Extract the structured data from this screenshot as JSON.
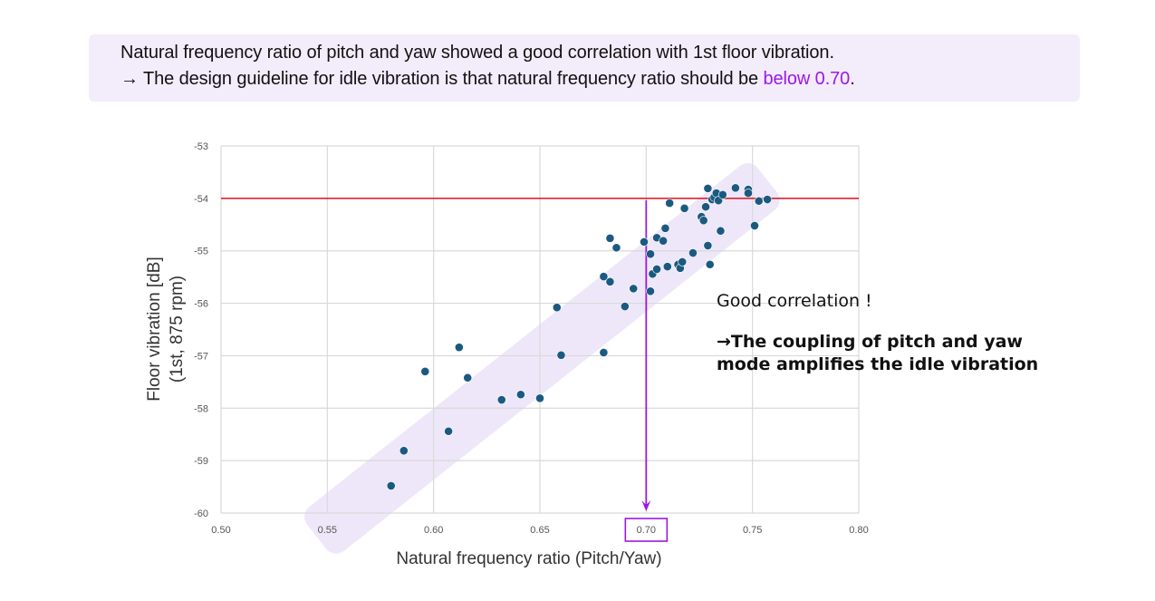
{
  "banner": {
    "line1": "Natural frequency ratio of pitch and yaw showed a good correlation with 1st floor vibration.",
    "line2_prefix": "→ The design guideline for idle vibration is that natural frequency ratio should be ",
    "line2_highlight": "below 0.70",
    "line2_suffix": ".",
    "highlight_color": "#9b18e6"
  },
  "annotation": {
    "title": "Good correlation !",
    "body": "→The coupling of pitch and yaw mode amplifies the idle vibration"
  },
  "chart_data": {
    "type": "scatter",
    "title": "",
    "xlabel": "Natural frequency ratio (Pitch/Yaw)",
    "ylabel_line1": "Floor vibration [dB]",
    "ylabel_line2": "(1st, 875 rpm)",
    "xlim": [
      0.5,
      0.8
    ],
    "ylim": [
      -60,
      -53
    ],
    "xticks": [
      0.5,
      0.55,
      0.6,
      0.65,
      0.7,
      0.75,
      0.8
    ],
    "xtick_labels": [
      "0.50",
      "0.55",
      "0.60",
      "0.65",
      "0.70",
      "0.75",
      "0.80"
    ],
    "yticks": [
      -53,
      -54,
      -55,
      -56,
      -57,
      -58,
      -59,
      -60
    ],
    "ytick_labels": [
      "-53",
      "-54",
      "-55",
      "-56",
      "-57",
      "-58",
      "-59",
      "-60"
    ],
    "grid": true,
    "legend": "none",
    "marker_color": "#1b5a80",
    "threshold_line": {
      "axis": "y",
      "value": -54,
      "color": "#e0202e"
    },
    "guideline": {
      "axis": "x",
      "value": 0.7,
      "color": "#9b18e6",
      "highlighted_tick": "0.70"
    },
    "trend_band": {
      "from": [
        0.545,
        -60.45
      ],
      "to": [
        0.757,
        -53.65
      ],
      "color": "#ece4f8"
    },
    "series": [
      {
        "name": "measurements",
        "points": [
          [
            0.58,
            -59.48
          ],
          [
            0.586,
            -58.81
          ],
          [
            0.596,
            -57.3
          ],
          [
            0.607,
            -58.44
          ],
          [
            0.612,
            -56.84
          ],
          [
            0.616,
            -57.42
          ],
          [
            0.632,
            -57.84
          ],
          [
            0.641,
            -57.74
          ],
          [
            0.65,
            -57.81
          ],
          [
            0.658,
            -56.08
          ],
          [
            0.66,
            -56.99
          ],
          [
            0.68,
            -56.94
          ],
          [
            0.68,
            -55.49
          ],
          [
            0.683,
            -55.59
          ],
          [
            0.683,
            -54.76
          ],
          [
            0.686,
            -54.94
          ],
          [
            0.69,
            -56.06
          ],
          [
            0.694,
            -55.72
          ],
          [
            0.699,
            -54.83
          ],
          [
            0.702,
            -55.77
          ],
          [
            0.702,
            -55.06
          ],
          [
            0.703,
            -55.44
          ],
          [
            0.705,
            -55.35
          ],
          [
            0.705,
            -54.75
          ],
          [
            0.708,
            -54.81
          ],
          [
            0.709,
            -54.57
          ],
          [
            0.71,
            -55.3
          ],
          [
            0.711,
            -54.09
          ],
          [
            0.715,
            -55.26
          ],
          [
            0.716,
            -55.33
          ],
          [
            0.717,
            -55.21
          ],
          [
            0.718,
            -54.19
          ],
          [
            0.722,
            -55.04
          ],
          [
            0.726,
            -54.35
          ],
          [
            0.727,
            -54.42
          ],
          [
            0.728,
            -54.16
          ],
          [
            0.729,
            -53.81
          ],
          [
            0.729,
            -54.9
          ],
          [
            0.73,
            -55.26
          ],
          [
            0.731,
            -54.02
          ],
          [
            0.732,
            -53.98
          ],
          [
            0.733,
            -53.9
          ],
          [
            0.734,
            -54.04
          ],
          [
            0.735,
            -54.62
          ],
          [
            0.736,
            -53.93
          ],
          [
            0.742,
            -53.8
          ],
          [
            0.748,
            -53.83
          ],
          [
            0.748,
            -53.9
          ],
          [
            0.751,
            -54.52
          ],
          [
            0.753,
            -54.05
          ],
          [
            0.757,
            -54.02
          ]
        ]
      }
    ]
  }
}
